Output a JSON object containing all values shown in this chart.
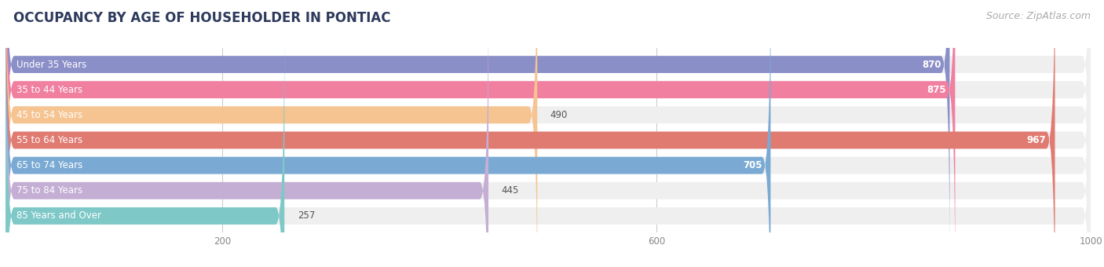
{
  "title": "OCCUPANCY BY AGE OF HOUSEHOLDER IN PONTIAC",
  "source": "Source: ZipAtlas.com",
  "categories": [
    "Under 35 Years",
    "35 to 44 Years",
    "45 to 54 Years",
    "55 to 64 Years",
    "65 to 74 Years",
    "75 to 84 Years",
    "85 Years and Over"
  ],
  "values": [
    870,
    875,
    490,
    967,
    705,
    445,
    257
  ],
  "bar_colors": [
    "#8b8fc8",
    "#f07fa0",
    "#f5c491",
    "#e07b72",
    "#7aaad4",
    "#c4aed4",
    "#7ec8c8"
  ],
  "bar_bg_color": "#efefef",
  "xlim_max": 1060,
  "data_max": 1000,
  "xticks": [
    200,
    600,
    1000
  ],
  "title_color": "#2e3a5c",
  "title_fontsize": 12,
  "source_fontsize": 9,
  "label_fontsize": 8.5,
  "value_fontsize": 8.5,
  "bar_height": 0.68,
  "figsize": [
    14.06,
    3.4
  ],
  "dpi": 100
}
